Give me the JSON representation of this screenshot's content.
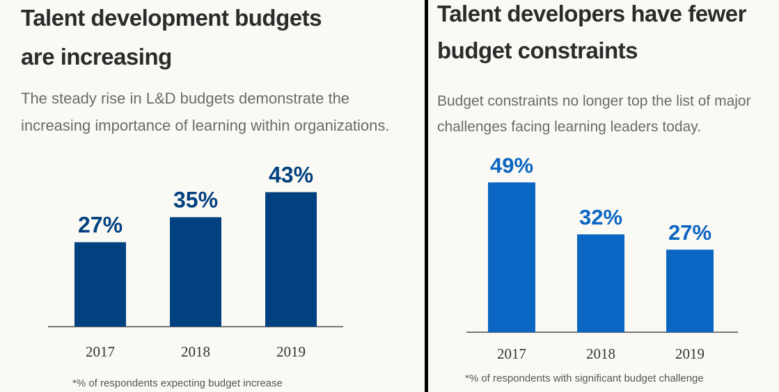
{
  "left": {
    "title_line1": "Talent development budgets",
    "title_line2": "are increasing",
    "subtitle_line1": "The steady rise in L&D  budgets demonstrate the",
    "subtitle_line2": "increasing importance of learning within organizations.",
    "footnote": "*% of respondents expecting budget increase",
    "chart_data": {
      "type": "bar",
      "title": "",
      "xlabel": "",
      "ylabel": "",
      "categories": [
        "2017",
        "2018",
        "2019"
      ],
      "values": [
        27,
        35,
        43
      ],
      "data_labels": [
        "27%",
        "35%",
        "43%"
      ],
      "ylim": [
        0,
        50
      ],
      "grid": false,
      "legend": "none",
      "bar_color": "#02417f"
    }
  },
  "right": {
    "title_line1": "Talent developers have fewer",
    "title_line2": "budget constraints",
    "subtitle_line1": "Budget constraints no longer top the list of major",
    "subtitle_line2": "challenges facing learning leaders today.",
    "footnote": "*% of respondents with significant budget challenge",
    "chart_data": {
      "type": "bar",
      "title": "",
      "xlabel": "",
      "ylabel": "",
      "categories": [
        "2017",
        "2018",
        "2019"
      ],
      "values": [
        49,
        32,
        27
      ],
      "data_labels": [
        "49%",
        "32%",
        "27%"
      ],
      "ylim": [
        0,
        60
      ],
      "grid": false,
      "legend": "none",
      "bar_color": "#0a66c2"
    }
  }
}
